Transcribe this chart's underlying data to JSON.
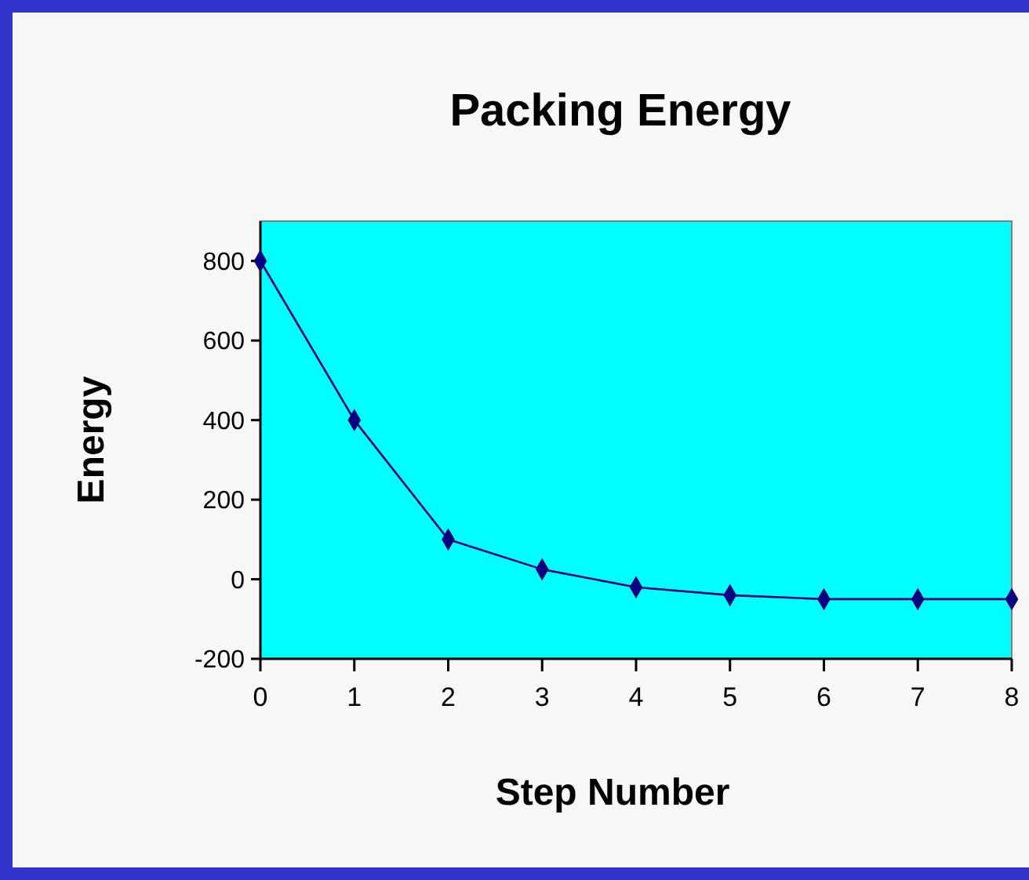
{
  "chart_data": {
    "type": "line",
    "title": "Packing Energy",
    "xlabel": "Step Number",
    "ylabel": "Energy",
    "x": [
      0,
      1,
      2,
      3,
      4,
      5,
      6,
      7,
      8
    ],
    "series": [
      {
        "color": "#000080",
        "values": [
          800,
          400,
          100,
          25,
          -20,
          -40,
          -50,
          -50,
          -50
        ]
      }
    ],
    "xlim": [
      0,
      8
    ],
    "xticks": [
      0,
      1,
      2,
      3,
      4,
      5,
      6,
      7,
      8
    ],
    "ylim": [
      -200,
      900
    ],
    "yticks": [
      -200,
      0,
      200,
      400,
      600,
      800
    ],
    "marker": "diamond",
    "line_style": "solid"
  }
}
